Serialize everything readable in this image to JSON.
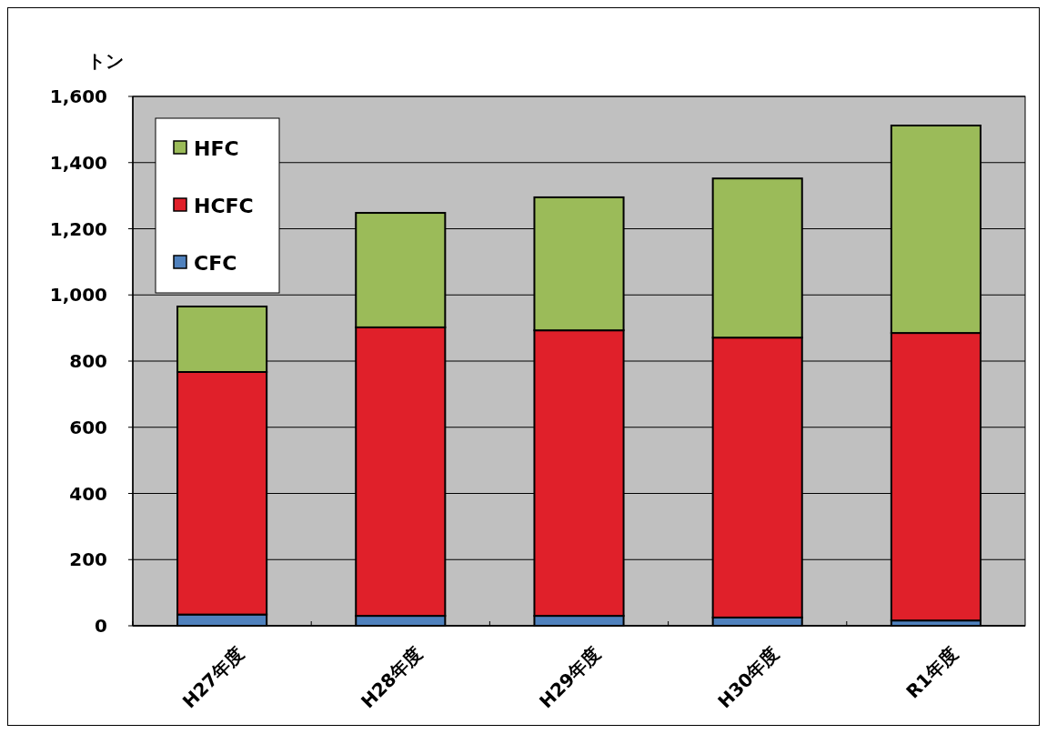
{
  "chart_data": {
    "type": "bar",
    "stacked": true,
    "ylabel": "トン",
    "categories": [
      "H27年度",
      "H28年度",
      "H29年度",
      "H30年度",
      "R1年度"
    ],
    "series": [
      {
        "name": "CFC",
        "color": "#4f81bd",
        "values": [
          34,
          30,
          30,
          25,
          16
        ]
      },
      {
        "name": "HCFC",
        "color": "#e0202a",
        "values": [
          733,
          872,
          863,
          846,
          869
        ]
      },
      {
        "name": "HFC",
        "color": "#9bbb59",
        "values": [
          198,
          346,
          402,
          481,
          627
        ]
      }
    ],
    "ylim": [
      0,
      1600
    ],
    "yticks": [
      {
        "value": 0,
        "label": "0"
      },
      {
        "value": 200,
        "label": "200"
      },
      {
        "value": 400,
        "label": "400"
      },
      {
        "value": 600,
        "label": "600"
      },
      {
        "value": 800,
        "label": "800"
      },
      {
        "value": 1000,
        "label": "1,000"
      },
      {
        "value": 1200,
        "label": "1,200"
      },
      {
        "value": 1400,
        "label": "1,400"
      },
      {
        "value": 1600,
        "label": "1,600"
      }
    ],
    "grid": "y",
    "legend": "top left"
  }
}
